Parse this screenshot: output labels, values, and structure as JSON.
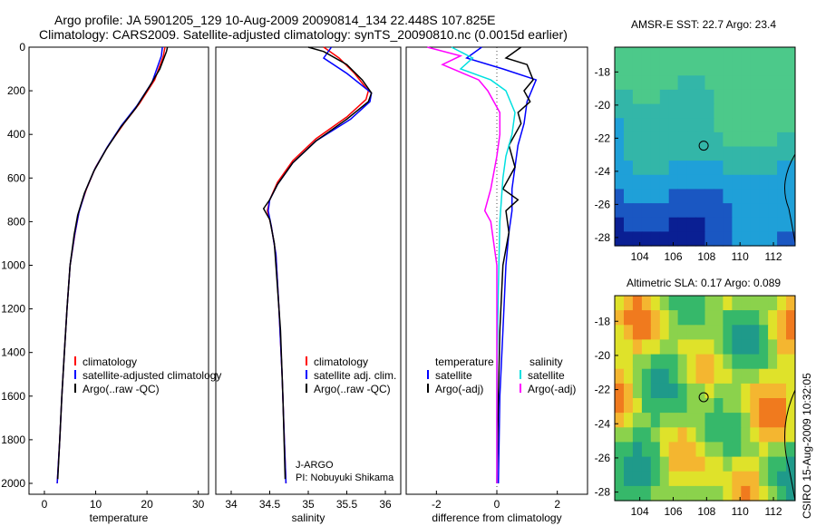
{
  "header": {
    "line1": "Argo profile: JA 5901205_129 10-Aug-2009 20090814_134 22.448S 107.825E",
    "line2": "Climatology: CARS2009. Satellite-adjusted climatology: synTS_20090810.nc (0.0015d earlier)"
  },
  "side_text": "CSIRO 15-Aug-2009 10:32:05",
  "colors": {
    "climatology": "#ff0000",
    "satellite": "#0000ff",
    "argo": "#000000",
    "sat_diff": "#00e0e0",
    "argo_adj": "#ff00ff"
  },
  "chart_data": [
    {
      "type": "line",
      "xlabel": "temperature",
      "xlim": [
        -3,
        32
      ],
      "ylim": [
        2050,
        0
      ],
      "xticks": [
        0,
        10,
        20,
        30
      ],
      "yticks": [
        0,
        200,
        400,
        600,
        800,
        1000,
        1200,
        1400,
        1600,
        1800,
        2000
      ],
      "legend": [
        "climatology",
        "satellite-adjusted climatology",
        "Argo(..raw -QC)"
      ],
      "series": [
        {
          "name": "climatology",
          "color": "#ff0000",
          "points": [
            [
              23.5,
              0
            ],
            [
              23.2,
              40
            ],
            [
              21.5,
              150
            ],
            [
              18.5,
              260
            ],
            [
              15.5,
              350
            ],
            [
              12.5,
              450
            ],
            [
              10.0,
              550
            ],
            [
              8.2,
              650
            ],
            [
              6.8,
              750
            ],
            [
              6.0,
              850
            ],
            [
              5.0,
              1000
            ],
            [
              4.4,
              1200
            ],
            [
              3.9,
              1400
            ],
            [
              3.4,
              1600
            ],
            [
              3.0,
              1800
            ],
            [
              2.5,
              2000
            ]
          ]
        },
        {
          "name": "satellite-adjusted climatology",
          "color": "#0000ff",
          "points": [
            [
              23.0,
              0
            ],
            [
              22.8,
              40
            ],
            [
              21.0,
              160
            ],
            [
              18.0,
              270
            ],
            [
              15.0,
              360
            ],
            [
              12.2,
              460
            ],
            [
              9.8,
              560
            ],
            [
              8.0,
              660
            ],
            [
              6.7,
              760
            ],
            [
              5.9,
              860
            ],
            [
              5.0,
              1000
            ],
            [
              4.4,
              1200
            ],
            [
              3.9,
              1400
            ],
            [
              3.4,
              1600
            ],
            [
              3.0,
              1800
            ],
            [
              2.5,
              2000
            ]
          ]
        },
        {
          "name": "Argo(..raw -QC)",
          "color": "#000000",
          "points": [
            [
              24.0,
              0
            ],
            [
              23.8,
              20
            ],
            [
              22.5,
              100
            ],
            [
              20.5,
              180
            ],
            [
              17.8,
              280
            ],
            [
              14.8,
              370
            ],
            [
              12.0,
              470
            ],
            [
              9.6,
              570
            ],
            [
              7.8,
              670
            ],
            [
              6.5,
              770
            ],
            [
              5.8,
              860
            ],
            [
              5.0,
              1000
            ],
            [
              4.4,
              1200
            ],
            [
              3.9,
              1400
            ],
            [
              3.4,
              1600
            ],
            [
              3.0,
              1800
            ],
            [
              2.6,
              1980
            ]
          ]
        }
      ]
    },
    {
      "type": "line",
      "xlabel": "salinity",
      "xlim": [
        33.8,
        36.2
      ],
      "ylim": [
        2050,
        0
      ],
      "xticks": [
        34,
        34.5,
        35,
        35.5,
        36
      ],
      "legend": [
        "climatology",
        "satellite adj. clim.",
        "Argo(..raw -QC)"
      ],
      "annotation": [
        "J-ARGO",
        "PI: Nobuyuki Shikama"
      ],
      "series": [
        {
          "name": "climatology",
          "color": "#ff0000",
          "points": [
            [
              35.2,
              0
            ],
            [
              35.4,
              50
            ],
            [
              35.6,
              120
            ],
            [
              35.78,
              200
            ],
            [
              35.75,
              240
            ],
            [
              35.5,
              320
            ],
            [
              35.1,
              420
            ],
            [
              34.8,
              520
            ],
            [
              34.6,
              620
            ],
            [
              34.5,
              700
            ],
            [
              34.47,
              750
            ],
            [
              34.52,
              820
            ],
            [
              34.58,
              950
            ],
            [
              34.62,
              1200
            ],
            [
              34.66,
              1500
            ],
            [
              34.69,
              1800
            ],
            [
              34.71,
              2000
            ]
          ]
        },
        {
          "name": "satellite adj. clim.",
          "color": "#0000ff",
          "points": [
            [
              35.3,
              0
            ],
            [
              35.2,
              50
            ],
            [
              35.5,
              120
            ],
            [
              35.82,
              210
            ],
            [
              35.8,
              250
            ],
            [
              35.55,
              330
            ],
            [
              35.1,
              430
            ],
            [
              34.8,
              530
            ],
            [
              34.6,
              630
            ],
            [
              34.5,
              700
            ],
            [
              34.48,
              750
            ],
            [
              34.52,
              820
            ],
            [
              34.58,
              950
            ],
            [
              34.62,
              1200
            ],
            [
              34.66,
              1500
            ],
            [
              34.69,
              1800
            ],
            [
              34.71,
              2000
            ]
          ]
        },
        {
          "name": "Argo(..raw -QC)",
          "color": "#000000",
          "points": [
            [
              35.0,
              0
            ],
            [
              35.2,
              20
            ],
            [
              35.5,
              80
            ],
            [
              35.7,
              150
            ],
            [
              35.82,
              210
            ],
            [
              35.78,
              250
            ],
            [
              35.5,
              330
            ],
            [
              35.1,
              430
            ],
            [
              34.8,
              530
            ],
            [
              34.6,
              630
            ],
            [
              34.5,
              700
            ],
            [
              34.42,
              740
            ],
            [
              34.5,
              790
            ],
            [
              34.56,
              900
            ],
            [
              34.6,
              1100
            ],
            [
              34.64,
              1300
            ],
            [
              34.67,
              1600
            ],
            [
              34.7,
              1980
            ]
          ]
        }
      ]
    },
    {
      "type": "line",
      "xlabel": "difference from climatology",
      "xlim": [
        -3,
        3
      ],
      "ylim": [
        2050,
        0
      ],
      "xticks": [
        -2,
        0,
        2
      ],
      "legend_left_title": "temperature",
      "legend_right_title": "salinity",
      "legend_left": [
        "satellite",
        "Argo(-adj)"
      ],
      "legend_right": [
        "satellite",
        "Argo(-adj)"
      ],
      "series": [
        {
          "name": "satellite",
          "group": "temperature",
          "color": "#0000ff",
          "points": [
            [
              -0.5,
              0
            ],
            [
              -1.0,
              50
            ],
            [
              0.2,
              100
            ],
            [
              1.3,
              150
            ],
            [
              1.0,
              250
            ],
            [
              0.9,
              350
            ],
            [
              0.7,
              450
            ],
            [
              0.6,
              550
            ],
            [
              0.5,
              650
            ],
            [
              0.5,
              750
            ],
            [
              0.4,
              850
            ],
            [
              0.3,
              1000
            ],
            [
              0.2,
              1300
            ],
            [
              0.1,
              1600
            ],
            [
              0.05,
              2000
            ]
          ]
        },
        {
          "name": "Argo(-adj)",
          "group": "temperature",
          "color": "#000000",
          "points": [
            [
              0.8,
              0
            ],
            [
              0.3,
              50
            ],
            [
              1.0,
              80
            ],
            [
              1.2,
              150
            ],
            [
              0.9,
              200
            ],
            [
              1.1,
              250
            ],
            [
              0.7,
              300
            ],
            [
              0.8,
              350
            ],
            [
              0.4,
              450
            ],
            [
              0.6,
              550
            ],
            [
              0.2,
              650
            ],
            [
              0.7,
              700
            ],
            [
              0.3,
              750
            ],
            [
              0.4,
              850
            ],
            [
              0.2,
              1000
            ],
            [
              0.1,
              1300
            ],
            [
              0.05,
              1600
            ],
            [
              0.0,
              2000
            ]
          ]
        },
        {
          "name": "satellite",
          "group": "salinity",
          "color": "#00e0e0",
          "points": [
            [
              -1.5,
              0
            ],
            [
              -0.8,
              50
            ],
            [
              -1.2,
              100
            ],
            [
              -0.2,
              150
            ],
            [
              0.3,
              200
            ],
            [
              0.6,
              300
            ],
            [
              0.5,
              400
            ],
            [
              0.3,
              500
            ],
            [
              0.2,
              600
            ],
            [
              0.1,
              800
            ],
            [
              0.05,
              1100
            ],
            [
              0.0,
              1500
            ],
            [
              0.0,
              2000
            ]
          ]
        },
        {
          "name": "Argo(-adj)",
          "group": "salinity",
          "color": "#ff00ff",
          "points": [
            [
              -2.3,
              0
            ],
            [
              -1.2,
              40
            ],
            [
              -1.8,
              80
            ],
            [
              -0.6,
              150
            ],
            [
              -0.3,
              200
            ],
            [
              0.1,
              300
            ],
            [
              0.1,
              400
            ],
            [
              0.0,
              500
            ],
            [
              -0.2,
              650
            ],
            [
              -0.4,
              750
            ],
            [
              -0.2,
              800
            ],
            [
              0.0,
              1000
            ],
            [
              0.0,
              1300
            ],
            [
              0.0,
              1600
            ],
            [
              0.0,
              2000
            ]
          ]
        }
      ]
    },
    {
      "type": "heatmap",
      "title": "AMSR-E SST: 22.7 Argo: 23.4",
      "xlim": [
        102.5,
        113.3
      ],
      "ylim": [
        -28.5,
        -16.5
      ],
      "xticks": [
        104,
        106,
        108,
        110,
        112
      ],
      "yticks": [
        -18,
        -20,
        -22,
        -24,
        -26,
        -28
      ],
      "marker": {
        "lon": 107.825,
        "lat": -22.448
      }
    },
    {
      "type": "heatmap",
      "title": "Altimetric SLA: 0.17 Argo: 0.089",
      "xlim": [
        102.5,
        113.3
      ],
      "ylim": [
        -28.5,
        -16.5
      ],
      "xticks": [
        104,
        106,
        108,
        110,
        112
      ],
      "yticks": [
        -18,
        -20,
        -22,
        -24,
        -26,
        -28
      ],
      "marker": {
        "lon": 107.825,
        "lat": -22.448
      }
    }
  ]
}
